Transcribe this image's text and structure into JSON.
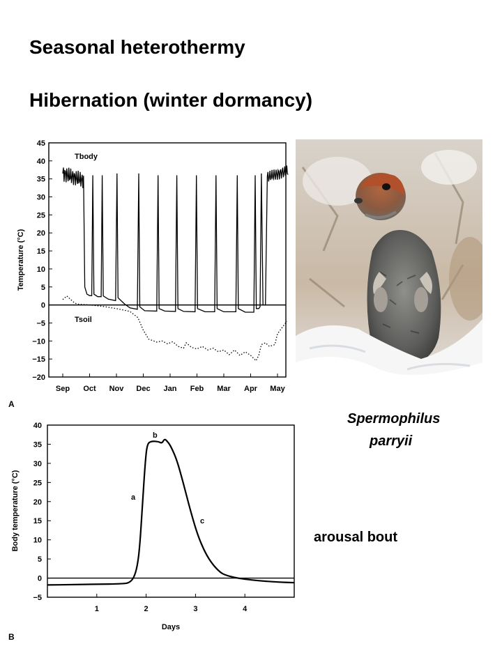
{
  "titles": {
    "line1": "Seasonal heterothermy",
    "line2": "Hibernation (winter dormancy)"
  },
  "captions": {
    "species_line1": "Spermophilus",
    "species_line2": "parryii",
    "arousal": "arousal bout"
  },
  "photo": {
    "description_icon": "arctic-ground-squirrel-photo"
  },
  "colors": {
    "line": "#000000",
    "background": "#ffffff"
  },
  "chart_data": [
    {
      "type": "line",
      "panel_label": "A",
      "ylabel": "Temperature (°C)",
      "xlabel": "",
      "ylim": [
        -20,
        45
      ],
      "yticks": [
        45,
        40,
        35,
        30,
        25,
        20,
        15,
        10,
        5,
        0,
        -5,
        -10,
        -15,
        -20
      ],
      "months": [
        "Sep",
        "Oct",
        "Nov",
        "Dec",
        "Jan",
        "Feb",
        "Mar",
        "Apr",
        "May"
      ],
      "annotations": [
        "Tbody",
        "Tsoil"
      ],
      "zero_line": true,
      "series": [
        {
          "name": "Tbody",
          "style": "solid",
          "points": [
            [
              0.0,
              38
            ],
            [
              0.2,
              37
            ],
            [
              0.4,
              36
            ],
            [
              0.6,
              35
            ],
            [
              0.75,
              34
            ],
            [
              0.8,
              34
            ],
            [
              0.82,
              5
            ],
            [
              0.9,
              3
            ],
            [
              1.0,
              2.6
            ],
            [
              1.08,
              2.6
            ],
            [
              1.12,
              36
            ],
            [
              1.16,
              3
            ],
            [
              1.3,
              2.3
            ],
            [
              1.43,
              2.3
            ],
            [
              1.47,
              36
            ],
            [
              1.51,
              2.5
            ],
            [
              1.7,
              1.6
            ],
            [
              1.97,
              1.2
            ],
            [
              2.02,
              36.5
            ],
            [
              2.06,
              2
            ],
            [
              2.3,
              0.3
            ],
            [
              2.5,
              -0.8
            ],
            [
              2.78,
              -1.2
            ],
            [
              2.83,
              36.5
            ],
            [
              2.87,
              -0.5
            ],
            [
              3.05,
              -1.6
            ],
            [
              3.5,
              -1.7
            ],
            [
              3.55,
              36
            ],
            [
              3.59,
              -1.0
            ],
            [
              3.8,
              -1.7
            ],
            [
              4.2,
              -1.8
            ],
            [
              4.25,
              36
            ],
            [
              4.29,
              -1.0
            ],
            [
              4.5,
              -1.8
            ],
            [
              4.93,
              -1.9
            ],
            [
              4.98,
              36
            ],
            [
              5.02,
              -1.0
            ],
            [
              5.3,
              -1.9
            ],
            [
              5.66,
              -1.9
            ],
            [
              5.71,
              36
            ],
            [
              5.75,
              -1.0
            ],
            [
              6.0,
              -1.9
            ],
            [
              6.45,
              -1.9
            ],
            [
              6.5,
              36
            ],
            [
              6.54,
              -1.0
            ],
            [
              6.8,
              -2.0
            ],
            [
              7.12,
              -2.0
            ],
            [
              7.17,
              36
            ],
            [
              7.21,
              -1.0
            ],
            [
              7.3,
              -1.0
            ],
            [
              7.35,
              -0.5
            ],
            [
              7.4,
              36.5
            ],
            [
              7.46,
              0
            ],
            [
              7.55,
              0
            ],
            [
              7.6,
              36
            ],
            [
              7.9,
              35
            ],
            [
              8.2,
              36
            ],
            [
              8.4,
              38
            ]
          ]
        },
        {
          "name": "Tsoil",
          "style": "dotted",
          "points": [
            [
              0.0,
              1.5
            ],
            [
              0.15,
              2.5
            ],
            [
              0.3,
              1.5
            ],
            [
              0.45,
              0.5
            ],
            [
              0.6,
              0.2
            ],
            [
              1.0,
              0.0
            ],
            [
              1.5,
              -0.4
            ],
            [
              2.0,
              -1.0
            ],
            [
              2.5,
              -1.8
            ],
            [
              2.8,
              -3.5
            ],
            [
              3.0,
              -7
            ],
            [
              3.2,
              -9.5
            ],
            [
              3.5,
              -10.3
            ],
            [
              3.7,
              -10.0
            ],
            [
              3.9,
              -10.8
            ],
            [
              4.1,
              -10.2
            ],
            [
              4.3,
              -11.5
            ],
            [
              4.5,
              -12.0
            ],
            [
              4.6,
              -10.5
            ],
            [
              4.8,
              -11.8
            ],
            [
              5.0,
              -12.2
            ],
            [
              5.2,
              -11.5
            ],
            [
              5.4,
              -12.5
            ],
            [
              5.6,
              -12.0
            ],
            [
              5.8,
              -13.0
            ],
            [
              6.0,
              -12.5
            ],
            [
              6.2,
              -13.8
            ],
            [
              6.4,
              -12.5
            ],
            [
              6.6,
              -14.0
            ],
            [
              6.8,
              -13.0
            ],
            [
              7.0,
              -14.0
            ],
            [
              7.2,
              -15.5
            ],
            [
              7.3,
              -14.0
            ],
            [
              7.4,
              -11.0
            ],
            [
              7.55,
              -10.5
            ],
            [
              7.7,
              -11.5
            ],
            [
              7.9,
              -11.0
            ],
            [
              8.0,
              -8.0
            ],
            [
              8.2,
              -6.0
            ],
            [
              8.35,
              -4.5
            ]
          ]
        }
      ]
    },
    {
      "type": "line",
      "panel_label": "B",
      "ylabel": "Body temperature (°C)",
      "xlabel": "Days",
      "xlim": [
        0,
        5
      ],
      "ylim": [
        -5,
        40
      ],
      "xticks": [
        1,
        2,
        3,
        4
      ],
      "yticks": [
        40,
        35,
        30,
        25,
        20,
        15,
        10,
        5,
        0,
        -5
      ],
      "annotations": [
        "a",
        "b",
        "c"
      ],
      "zero_line": true,
      "series": [
        {
          "name": "",
          "style": "solid",
          "points": [
            [
              0.0,
              -1.8
            ],
            [
              0.5,
              -1.7
            ],
            [
              1.0,
              -1.6
            ],
            [
              1.5,
              -1.5
            ],
            [
              1.65,
              -1.3
            ],
            [
              1.75,
              0
            ],
            [
              1.82,
              3
            ],
            [
              1.87,
              8
            ],
            [
              1.93,
              20
            ],
            [
              1.98,
              30
            ],
            [
              2.02,
              35
            ],
            [
              2.1,
              35.8
            ],
            [
              2.25,
              35.7
            ],
            [
              2.32,
              35.2
            ],
            [
              2.37,
              36.4
            ],
            [
              2.42,
              35.9
            ],
            [
              2.5,
              34.5
            ],
            [
              2.62,
              31
            ],
            [
              2.75,
              25
            ],
            [
              2.9,
              17.5
            ],
            [
              3.05,
              11
            ],
            [
              3.2,
              6.5
            ],
            [
              3.35,
              3.5
            ],
            [
              3.5,
              1.5
            ],
            [
              3.6,
              0.8
            ],
            [
              3.8,
              0.1
            ],
            [
              4.0,
              -0.3
            ],
            [
              4.3,
              -0.7
            ],
            [
              4.6,
              -1.0
            ],
            [
              5.0,
              -1.2
            ]
          ]
        }
      ]
    }
  ]
}
